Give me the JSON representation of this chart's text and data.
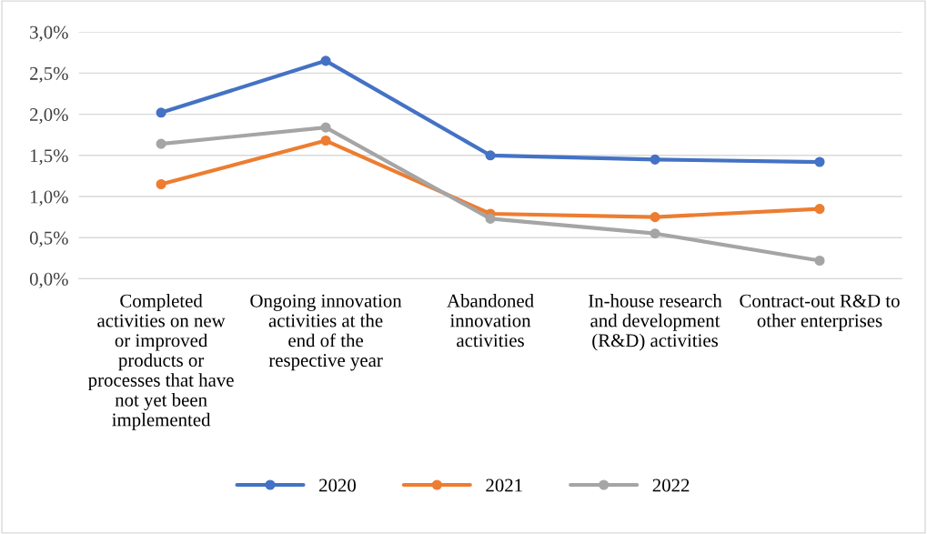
{
  "chart_data": {
    "type": "line",
    "categories": [
      "Completed activities on new or improved products or processes that have not yet been implemented",
      "Ongoing innovation activities at the end of the respective year",
      "Abandoned innovation activities",
      "In-house research and development (R&D) activities",
      "Contract-out R&D to other enterprises"
    ],
    "series": [
      {
        "name": "2020",
        "color": "#4472c4",
        "values": [
          2.02,
          2.65,
          1.5,
          1.45,
          1.42
        ]
      },
      {
        "name": "2021",
        "color": "#ed7d31",
        "values": [
          1.15,
          1.68,
          0.79,
          0.75,
          0.85
        ]
      },
      {
        "name": "2022",
        "color": "#a5a5a5",
        "values": [
          1.64,
          1.84,
          0.73,
          0.55,
          0.22
        ]
      }
    ],
    "ylim": [
      0,
      3
    ],
    "yticks": [
      {
        "value": 0,
        "label": "0,0%"
      },
      {
        "value": 0.5,
        "label": "0,5%"
      },
      {
        "value": 1,
        "label": "1,0%"
      },
      {
        "value": 1.5,
        "label": "1,5%"
      },
      {
        "value": 2,
        "label": "2,0%"
      },
      {
        "value": 2.5,
        "label": "2,5%"
      },
      {
        "value": 3,
        "label": "3,0%"
      }
    ],
    "grid": "y",
    "legend": "bottom",
    "marker": "circle",
    "line_style": "solid"
  }
}
